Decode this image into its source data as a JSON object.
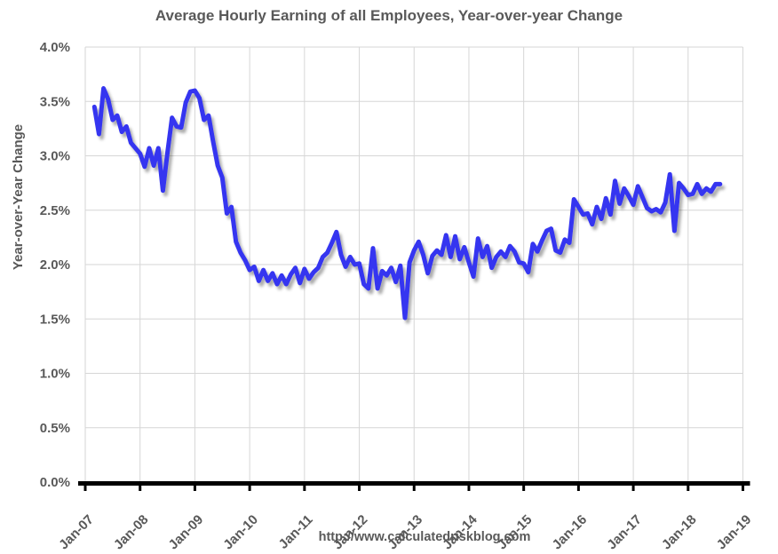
{
  "title": "Average Hourly Earning of all Employees, Year-over-year Change",
  "footer": "http://www.calculatedriskblog.com",
  "y_axis": {
    "label": "Year-over-Year Change",
    "tick_labels": [
      "0.0%",
      "0.5%",
      "1.0%",
      "1.5%",
      "2.0%",
      "2.5%",
      "3.0%",
      "3.5%",
      "4.0%"
    ],
    "tick_values": [
      0.0,
      0.5,
      1.0,
      1.5,
      2.0,
      2.5,
      3.0,
      3.5,
      4.0
    ]
  },
  "x_axis": {
    "tick_labels": [
      "Jan-07",
      "Jan-08",
      "Jan-09",
      "Jan-10",
      "Jan-11",
      "Jan-12",
      "Jan-13",
      "Jan-14",
      "Jan-15",
      "Jan-16",
      "Jan-17",
      "Jan-18",
      "Jan-19"
    ]
  },
  "colors": {
    "line": "#3434f0",
    "grid": "#d6d6d6",
    "axis": "#000000",
    "text": "#595959",
    "background": "#ffffff"
  },
  "chart_data": {
    "type": "line",
    "title": "Average Hourly Earning of all Employees, Year-over-year Change",
    "xlabel": "",
    "ylabel": "Year-over-Year Change",
    "unit": "percent",
    "ylim": [
      0.0,
      4.0
    ],
    "x_axis_span": [
      "Jan-07",
      "Jan-19"
    ],
    "grid": true,
    "legend": "none",
    "series_name": "AHE YoY change",
    "frequency": "monthly",
    "start_month": "2007-03",
    "end_month": "2018-08",
    "values": [
      3.45,
      3.2,
      3.62,
      3.52,
      3.33,
      3.37,
      3.22,
      3.27,
      3.12,
      3.07,
      3.02,
      2.9,
      3.07,
      2.91,
      3.07,
      2.68,
      3.03,
      3.35,
      3.27,
      3.26,
      3.49,
      3.59,
      3.6,
      3.53,
      3.33,
      3.37,
      3.13,
      2.91,
      2.8,
      2.47,
      2.53,
      2.21,
      2.11,
      2.04,
      1.95,
      1.98,
      1.85,
      1.95,
      1.85,
      1.92,
      1.82,
      1.9,
      1.82,
      1.91,
      1.97,
      1.83,
      1.96,
      1.87,
      1.93,
      1.97,
      2.07,
      2.11,
      2.2,
      2.3,
      2.09,
      1.98,
      2.07,
      2.0,
      2.01,
      1.82,
      1.78,
      2.15,
      1.78,
      1.94,
      1.9,
      1.97,
      1.84,
      1.99,
      1.51,
      2.02,
      2.13,
      2.21,
      2.09,
      1.92,
      2.08,
      2.13,
      2.09,
      2.27,
      2.07,
      2.26,
      2.05,
      2.16,
      2.02,
      1.89,
      2.24,
      2.07,
      2.17,
      1.97,
      2.07,
      2.12,
      2.07,
      2.17,
      2.12,
      2.02,
      2.01,
      1.93,
      2.19,
      2.12,
      2.22,
      2.31,
      2.33,
      2.13,
      2.11,
      2.23,
      2.2,
      2.6,
      2.53,
      2.46,
      2.47,
      2.37,
      2.53,
      2.42,
      2.61,
      2.46,
      2.77,
      2.56,
      2.7,
      2.63,
      2.55,
      2.72,
      2.62,
      2.52,
      2.49,
      2.51,
      2.48,
      2.57,
      2.83,
      2.31,
      2.75,
      2.7,
      2.64,
      2.65,
      2.74,
      2.65,
      2.7,
      2.67,
      2.74,
      2.74
    ]
  }
}
